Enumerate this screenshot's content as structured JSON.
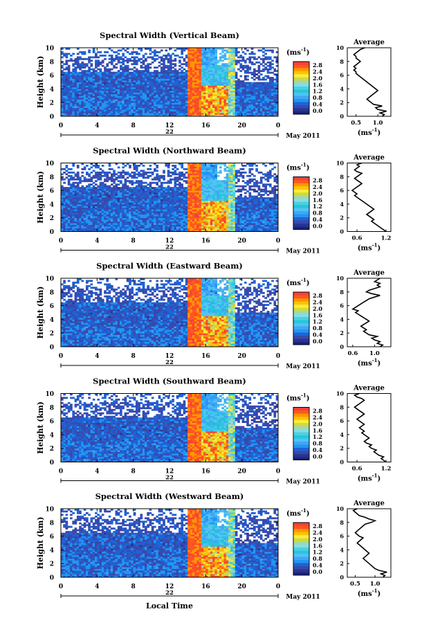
{
  "figure": {
    "ylabel": "Height (km)",
    "xlabel": "Local Time",
    "date_label": "May 2011",
    "day_label": "22",
    "avg_title": "Average",
    "unit": "(ms",
    "unit_sup": "-1",
    "avg_xlabel": "(ms",
    "yticks": [
      "0",
      "2",
      "4",
      "6",
      "8",
      "10"
    ],
    "xticks": [
      "0",
      "4",
      "8",
      "12",
      "16",
      "20",
      "0"
    ],
    "colorbar_ticks": [
      "0.0",
      "0.4",
      "0.8",
      "1.2",
      "1.6",
      "2.0",
      "2.4",
      "2.8"
    ]
  },
  "chart_data": [
    {
      "type": "heatmap",
      "title": "Spectral Width (Vertical Beam)",
      "avg_xticks": [
        "0.5",
        "1.0"
      ],
      "avg_xlim": [
        0.3,
        1.3
      ],
      "avg_profile": [
        1.1,
        1.15,
        1.05,
        1.2,
        1.0,
        0.95,
        1.1,
        0.9,
        0.85,
        0.8,
        0.75,
        0.8,
        0.85,
        0.9,
        0.95,
        1.0,
        0.95,
        0.9,
        0.85,
        0.8,
        0.75,
        0.7,
        0.65,
        0.6,
        0.55,
        0.5,
        0.5,
        0.45,
        0.5,
        0.45,
        0.5,
        0.55,
        0.6,
        0.55,
        0.5,
        0.5,
        0.45,
        0.5,
        0.55,
        0.6,
        0.7
      ]
    },
    {
      "type": "heatmap",
      "title": "Spectral Width (Northward Beam)",
      "avg_xticks": [
        "0.6",
        "1.2"
      ],
      "avg_xlim": [
        0.4,
        1.3
      ],
      "avg_profile": [
        1.2,
        1.15,
        1.1,
        1.05,
        1.0,
        0.95,
        0.9,
        0.95,
        0.9,
        0.85,
        0.8,
        0.85,
        0.9,
        0.95,
        0.9,
        0.85,
        0.8,
        0.75,
        0.7,
        0.65,
        0.6,
        0.55,
        0.6,
        0.55,
        0.5,
        0.55,
        0.6,
        0.65,
        0.7,
        0.65,
        0.6,
        0.55,
        0.6,
        0.65,
        0.7,
        0.6,
        0.55,
        0.6,
        0.65,
        0.6,
        0.7
      ]
    },
    {
      "type": "heatmap",
      "title": "Spectral Width (Eastward Beam)",
      "avg_xticks": [
        "0.6",
        "1.0"
      ],
      "avg_xlim": [
        0.5,
        1.3
      ],
      "avg_profile": [
        1.1,
        1.15,
        1.05,
        1.1,
        1.0,
        0.95,
        1.05,
        0.9,
        0.85,
        0.8,
        0.85,
        0.8,
        0.75,
        0.8,
        0.85,
        0.9,
        0.85,
        0.8,
        0.75,
        0.7,
        0.65,
        0.7,
        0.6,
        0.65,
        0.7,
        0.75,
        0.8,
        0.85,
        0.9,
        1.0,
        1.1,
        0.95,
        0.85,
        0.9,
        1.0,
        1.1,
        1.05,
        1.1,
        1.0,
        1.05,
        1.1
      ]
    },
    {
      "type": "heatmap",
      "title": "Spectral Width (Southward Beam)",
      "avg_xticks": [
        "0.6",
        "1.2"
      ],
      "avg_xlim": [
        0.4,
        1.3
      ],
      "avg_profile": [
        1.2,
        1.15,
        1.1,
        1.15,
        1.05,
        1.0,
        0.95,
        1.0,
        0.9,
        0.85,
        0.9,
        0.8,
        0.75,
        0.8,
        0.85,
        0.8,
        0.75,
        0.7,
        0.75,
        0.7,
        0.65,
        0.7,
        0.75,
        0.7,
        0.65,
        0.6,
        0.65,
        0.7,
        0.75,
        0.7,
        0.65,
        0.6,
        0.55,
        0.6,
        0.65,
        0.7,
        0.75,
        0.7,
        0.6,
        0.55,
        0.65
      ]
    },
    {
      "type": "heatmap",
      "title": "Spectral Width (Westward Beam)",
      "avg_xticks": [
        "0.5",
        "1.0"
      ],
      "avg_xlim": [
        0.3,
        1.4
      ],
      "avg_profile": [
        1.2,
        1.25,
        1.15,
        1.3,
        1.1,
        1.0,
        0.95,
        0.9,
        0.85,
        0.8,
        0.75,
        0.7,
        0.75,
        0.8,
        0.85,
        0.8,
        0.75,
        0.7,
        0.65,
        0.6,
        0.55,
        0.6,
        0.65,
        0.7,
        0.6,
        0.55,
        0.5,
        0.55,
        0.6,
        0.65,
        0.7,
        0.75,
        0.9,
        1.0,
        0.85,
        0.75,
        0.6,
        0.55,
        0.5,
        0.45,
        0.55
      ]
    }
  ]
}
